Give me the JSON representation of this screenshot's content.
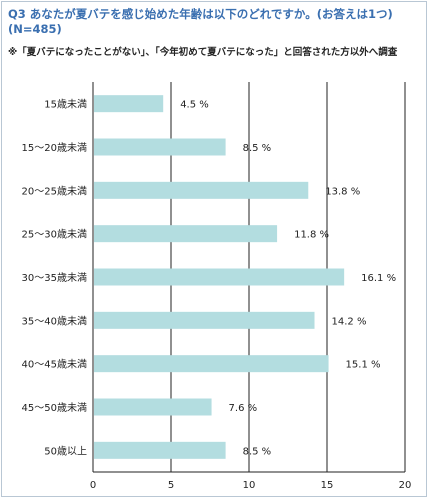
{
  "header": {
    "title": "Q3 あなたが夏バテを感じ始めた年齢は以下のどれですか。(お答えは1つ)",
    "sample": "(N=485)",
    "note": "※「夏バテになったことがない」、「今年初めて夏バテになった」と回答された方以外へ調査"
  },
  "chart_data": {
    "type": "bar",
    "orientation": "horizontal",
    "categories": [
      "15歳未満",
      "15～20歳未満",
      "20～25歳未満",
      "25～30歳未満",
      "30～35歳未満",
      "35～40歳未満",
      "40～45歳未満",
      "45～50歳未満",
      "50歳以上"
    ],
    "values": [
      4.5,
      8.5,
      13.8,
      11.8,
      16.1,
      14.2,
      15.1,
      7.6,
      8.5
    ],
    "value_labels": [
      "4.5 %",
      "8.5 %",
      "13.8 %",
      "11.8 %",
      "16.1 %",
      "14.2 %",
      "15.1 %",
      "7.6 %",
      "8.5 %"
    ],
    "xlim": [
      0,
      20
    ],
    "xticks": [
      "0",
      "5",
      "10",
      "15",
      "20"
    ],
    "grid": true,
    "bar_color": "#b3dde0",
    "grid_color": "#222222"
  }
}
